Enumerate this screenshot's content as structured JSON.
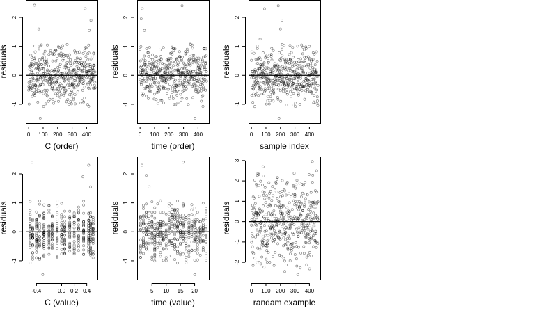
{
  "chart_data": [
    {
      "type": "scatter",
      "xlabel": "C (order)",
      "ylabel": "residuals",
      "xlim": [
        -20,
        475
      ],
      "ylim": [
        -1.65,
        2.6
      ],
      "xticks": [
        0,
        100,
        200,
        300,
        400
      ],
      "xtick_labels": [
        "0",
        "100",
        "200",
        "300",
        "400"
      ],
      "yticks": [
        -1,
        0,
        1,
        2
      ],
      "ytick_labels": [
        "-1",
        "0",
        "1",
        "2"
      ],
      "hline": 0,
      "generator": {
        "x_mode": "index",
        "n": 460,
        "sd": 0.45,
        "seed": 11,
        "outliers": [
          [
            40,
            2.42
          ],
          [
            390,
            2.3
          ],
          [
            418,
            1.55
          ],
          [
            70,
            1.6
          ],
          [
            80,
            -1.48
          ],
          [
            430,
            1.9
          ]
        ]
      }
    },
    {
      "type": "scatter",
      "xlabel": "time (order)",
      "ylabel": "residuals",
      "xlim": [
        -20,
        475
      ],
      "ylim": [
        -1.65,
        2.6
      ],
      "xticks": [
        0,
        100,
        200,
        300,
        400
      ],
      "xtick_labels": [
        "0",
        "100",
        "200",
        "300",
        "400"
      ],
      "yticks": [
        -1,
        0,
        1,
        2
      ],
      "ytick_labels": [
        "-1",
        "0",
        "1",
        "2"
      ],
      "hline": 0,
      "generator": {
        "x_mode": "index",
        "n": 460,
        "sd": 0.45,
        "seed": 23,
        "outliers": [
          [
            15,
            2.3
          ],
          [
            30,
            1.55
          ],
          [
            290,
            2.4
          ],
          [
            8,
            1.95
          ],
          [
            380,
            -1.48
          ]
        ]
      }
    },
    {
      "type": "scatter",
      "xlabel": "sample index",
      "ylabel": "residuals",
      "xlim": [
        -20,
        475
      ],
      "ylim": [
        -1.65,
        2.6
      ],
      "xticks": [
        0,
        100,
        200,
        300,
        400
      ],
      "xtick_labels": [
        "0",
        "100",
        "200",
        "300",
        "400"
      ],
      "yticks": [
        -1,
        0,
        1,
        2
      ],
      "ytick_labels": [
        "-1",
        "0",
        "1",
        "2"
      ],
      "hline": 0,
      "generator": {
        "x_mode": "index",
        "n": 460,
        "sd": 0.45,
        "seed": 37,
        "outliers": [
          [
            90,
            2.3
          ],
          [
            185,
            2.4
          ],
          [
            210,
            1.9
          ],
          [
            200,
            1.6
          ],
          [
            190,
            -1.48
          ],
          [
            60,
            1.25
          ]
        ]
      }
    },
    {
      "type": "scatter",
      "xlabel": "C (value)",
      "ylabel": "residuals",
      "xlim": [
        -0.57,
        0.57
      ],
      "ylim": [
        -1.65,
        2.6
      ],
      "xticks": [
        -0.4,
        0.0,
        0.2,
        0.4
      ],
      "xtick_labels": [
        "-0.4",
        "0.0",
        "0.2",
        "0.4"
      ],
      "yticks": [
        -1,
        0,
        1,
        2
      ],
      "ytick_labels": [
        "-1",
        "0",
        "1",
        "2"
      ],
      "hline": 0,
      "generator": {
        "x_mode": "columns",
        "n": 460,
        "sd": 0.45,
        "seed": 41,
        "columns": [
          -0.5,
          -0.46,
          -0.4,
          -0.35,
          -0.28,
          -0.2,
          -0.15,
          -0.07,
          0.0,
          0.05,
          0.13,
          0.2,
          0.27,
          0.35,
          0.43,
          0.46,
          0.5
        ],
        "outliers": [
          [
            -0.47,
            2.4
          ],
          [
            0.43,
            2.3
          ],
          [
            0.34,
            1.9
          ],
          [
            0.46,
            1.55
          ],
          [
            -0.3,
            -1.48
          ]
        ]
      }
    },
    {
      "type": "scatter",
      "xlabel": "time (value)",
      "ylabel": "residuals",
      "xlim": [
        -0.2,
        25.0
      ],
      "ylim": [
        -1.65,
        2.6
      ],
      "xticks": [
        5,
        10,
        15,
        20
      ],
      "xtick_labels": [
        "5",
        "10",
        "15",
        "20"
      ],
      "yticks": [
        -1,
        0,
        1,
        2
      ],
      "ytick_labels": [
        "-1",
        "0",
        "1",
        "2"
      ],
      "hline": 0,
      "generator": {
        "x_mode": "columns",
        "n": 460,
        "sd": 0.45,
        "seed": 53,
        "columns": [
          1,
          2,
          3,
          4,
          5,
          6,
          7,
          8,
          9,
          10,
          11,
          12,
          13,
          14,
          15,
          16,
          17,
          18,
          19,
          20,
          21,
          22,
          23,
          24
        ],
        "outliers": [
          [
            1.5,
            2.3
          ],
          [
            3,
            1.95
          ],
          [
            16,
            2.4
          ],
          [
            4,
            1.55
          ],
          [
            20,
            -1.48
          ]
        ]
      }
    },
    {
      "type": "scatter",
      "xlabel": "randam example",
      "ylabel": "residuals",
      "xlim": [
        -20,
        475
      ],
      "ylim": [
        -2.85,
        3.2
      ],
      "xticks": [
        0,
        100,
        200,
        300,
        400
      ],
      "xtick_labels": [
        "0",
        "100",
        "200",
        "300",
        "400"
      ],
      "yticks": [
        -2,
        -1,
        0,
        1,
        2,
        3
      ],
      "ytick_labels": [
        "-2",
        "-1",
        "0",
        "1",
        "2",
        "3"
      ],
      "hline": 0,
      "generator": {
        "x_mode": "index",
        "n": 460,
        "sd": 1.0,
        "seed": 67,
        "outliers": [
          [
            420,
            2.95
          ],
          [
            80,
            2.7
          ],
          [
            450,
            2.5
          ],
          [
            230,
            -2.45
          ],
          [
            320,
            -2.6
          ]
        ]
      }
    }
  ]
}
